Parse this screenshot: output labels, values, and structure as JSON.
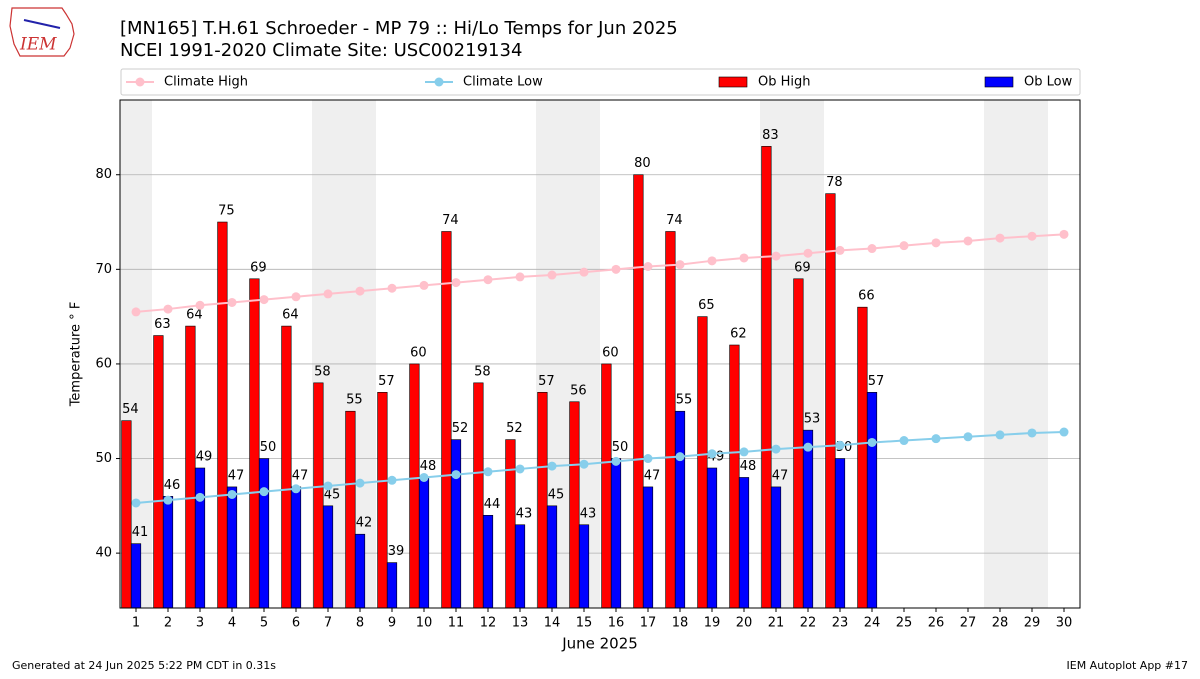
{
  "chart_data": {
    "type": "bar",
    "title": "[MN165] T.H.61 Schroeder - MP 79  :: Hi/Lo Temps for Jun 2025",
    "subtitle": "NCEI 1991-2020 Climate Site: USC00219134",
    "logo": "IEM",
    "xlabel": "June 2025",
    "ylabel": "Temperature $^\\circ$F",
    "ylabel_printed": "Temperature ° F",
    "footer_left": "Generated at 24 Jun 2025 5:22 PM CDT in 0.31s",
    "footer_right": "IEM Autoplot App #17",
    "categories": [
      1,
      2,
      3,
      4,
      5,
      6,
      7,
      8,
      9,
      10,
      11,
      12,
      13,
      14,
      15,
      16,
      17,
      18,
      19,
      20,
      21,
      22,
      23,
      24,
      25,
      26,
      27,
      28,
      29,
      30
    ],
    "series": [
      {
        "name": "Climate High",
        "type": "line",
        "color": "#ffc0cb",
        "values": [
          65.5,
          65.8,
          66.2,
          66.5,
          66.8,
          67.1,
          67.4,
          67.7,
          68.0,
          68.3,
          68.6,
          68.9,
          69.2,
          69.4,
          69.7,
          70.0,
          70.3,
          70.5,
          70.9,
          71.2,
          71.4,
          71.7,
          72.0,
          72.2,
          72.5,
          72.8,
          73.0,
          73.3,
          73.5,
          73.7
        ]
      },
      {
        "name": "Climate Low",
        "type": "line",
        "color": "#87ceeb",
        "values": [
          45.3,
          45.6,
          45.9,
          46.2,
          46.5,
          46.8,
          47.1,
          47.4,
          47.7,
          48.0,
          48.3,
          48.6,
          48.9,
          49.2,
          49.4,
          49.7,
          50.0,
          50.2,
          50.5,
          50.7,
          51.0,
          51.2,
          51.4,
          51.7,
          51.9,
          52.1,
          52.3,
          52.5,
          52.7,
          52.8
        ]
      },
      {
        "name": "Ob High",
        "type": "bar",
        "color": "#ff0000",
        "values": [
          54,
          63,
          64,
          75,
          69,
          64,
          58,
          55,
          57,
          60,
          74,
          58,
          52,
          57,
          56,
          60,
          80,
          74,
          65,
          62,
          83,
          69,
          78,
          66,
          null,
          null,
          null,
          null,
          null,
          null
        ]
      },
      {
        "name": "Ob Low",
        "type": "bar",
        "color": "#0000ff",
        "values": [
          41,
          46,
          49,
          47,
          50,
          47,
          45,
          42,
          39,
          48,
          52,
          44,
          43,
          45,
          43,
          50,
          47,
          55,
          49,
          48,
          47,
          53,
          50,
          57,
          null,
          null,
          null,
          null,
          null,
          null
        ]
      }
    ],
    "ylim": [
      34.2,
      87.9
    ],
    "yticks": [
      40,
      50,
      60,
      70,
      80
    ],
    "grid": true
  }
}
